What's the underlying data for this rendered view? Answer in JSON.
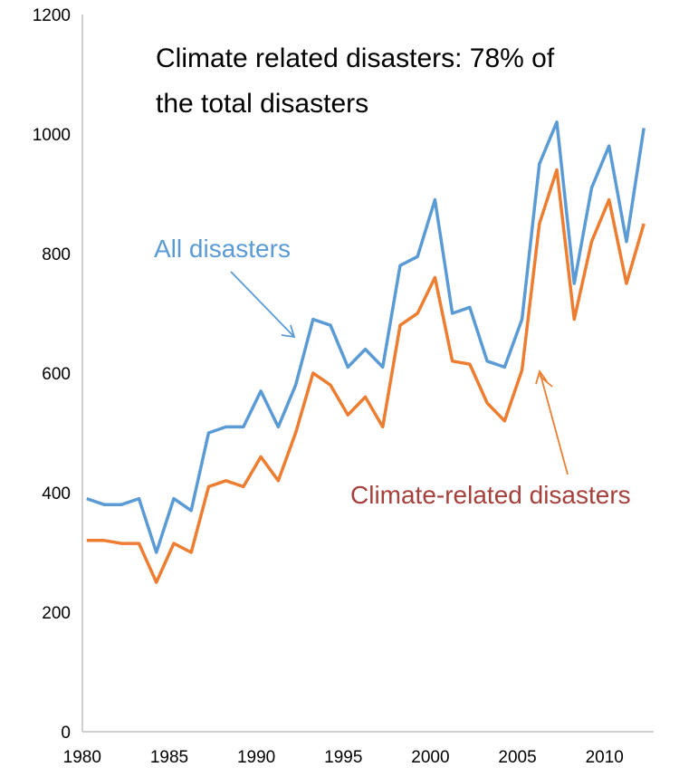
{
  "chart_data": {
    "type": "line",
    "title_lines": [
      "Climate related disasters: 78% of",
      "the total disasters"
    ],
    "xlabel": "",
    "ylabel": "",
    "xlim": [
      1980,
      2012.5
    ],
    "ylim": [
      0,
      1200
    ],
    "x_ticks": [
      1980,
      1985,
      1990,
      1995,
      2000,
      2005,
      2010
    ],
    "y_ticks": [
      0,
      200,
      400,
      600,
      800,
      1000,
      1200
    ],
    "grid": false,
    "x": [
      1980,
      1981,
      1982,
      1983,
      1984,
      1985,
      1986,
      1987,
      1988,
      1989,
      1990,
      1991,
      1992,
      1993,
      1994,
      1995,
      1996,
      1997,
      1998,
      1999,
      2000,
      2001,
      2002,
      2003,
      2004,
      2005,
      2006,
      2007,
      2008,
      2009,
      2010,
      2011,
      2012
    ],
    "series": [
      {
        "name": "All disasters",
        "color": "#5b9bd5",
        "values": [
          390,
          380,
          380,
          390,
          300,
          390,
          370,
          500,
          510,
          510,
          570,
          510,
          580,
          690,
          680,
          610,
          640,
          610,
          780,
          795,
          890,
          700,
          710,
          620,
          610,
          690,
          950,
          1020,
          750,
          910,
          980,
          820,
          1010
        ]
      },
      {
        "name": "Climate-related disasters",
        "color": "#ed7d31",
        "values": [
          320,
          320,
          315,
          315,
          250,
          315,
          300,
          410,
          420,
          410,
          460,
          420,
          500,
          600,
          580,
          530,
          560,
          510,
          680,
          700,
          760,
          620,
          615,
          550,
          520,
          605,
          850,
          940,
          690,
          820,
          890,
          750,
          850
        ]
      }
    ],
    "annotations": [
      {
        "text": "All disasters",
        "color": "#5b9bd5"
      },
      {
        "text": "Climate-related disasters",
        "color": "#a5403c"
      }
    ]
  }
}
